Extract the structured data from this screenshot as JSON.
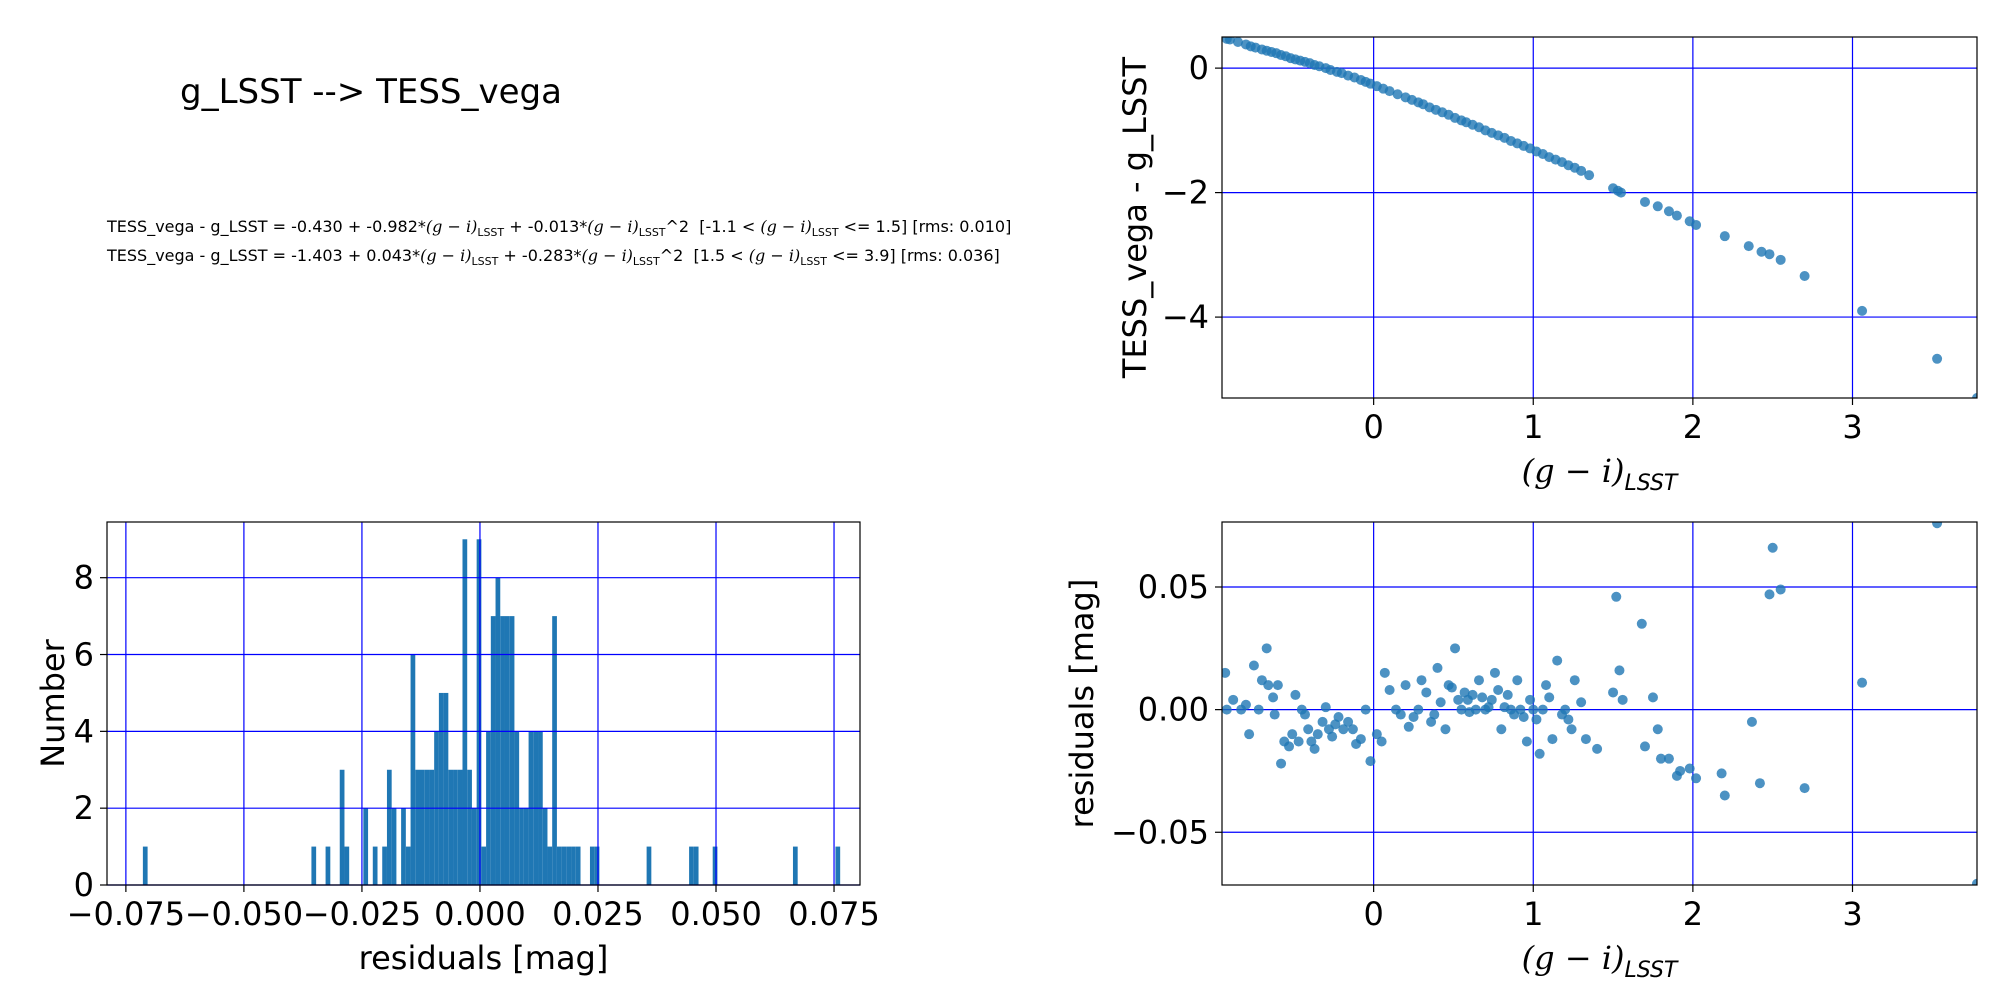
{
  "figure": {
    "title": "g_LSST --> TESS_vega",
    "equations": [
      {
        "lhs": "TESS_vega - g_LSST = -0.430 + -0.982*",
        "mid": " + -0.013*",
        "tail": "^2",
        "range_pre": "  [-1.1 < ",
        "range_post": " <= 1.5] [rms: 0.010]"
      },
      {
        "lhs": "TESS_vega - g_LSST = -1.403 + 0.043*",
        "mid": " + -0.283*",
        "tail": "^2",
        "range_pre": "  [1.5 < ",
        "range_post": " <= 3.9] [rms: 0.036]"
      }
    ],
    "color_term": "(g − i)",
    "color_sub": "LSST"
  },
  "colors": {
    "points": "#1f77b4",
    "grid": "#0000ff",
    "axes": "#000000"
  },
  "chart_data": [
    {
      "type": "scatter",
      "name": "transformation",
      "xlabel": "(g − i)",
      "xlabel_sub": "LSST",
      "ylabel": "TESS_vega - g_LSST",
      "xlim": [
        -0.95,
        3.78
      ],
      "ylim": [
        -5.3,
        0.5
      ],
      "xticks": [
        0,
        1,
        2,
        3
      ],
      "yticks": [
        0,
        -2,
        -4
      ],
      "xticklabels": [
        "0",
        "1",
        "2",
        "3"
      ],
      "yticklabels": [
        "0",
        "−2",
        "−4"
      ],
      "grid": true,
      "points": [
        [
          -0.92,
          0.47
        ],
        [
          -0.9,
          0.46
        ],
        [
          -0.85,
          0.42
        ],
        [
          -0.8,
          0.38
        ],
        [
          -0.77,
          0.35
        ],
        [
          -0.74,
          0.33
        ],
        [
          -0.7,
          0.3
        ],
        [
          -0.67,
          0.28
        ],
        [
          -0.64,
          0.26
        ],
        [
          -0.61,
          0.24
        ],
        [
          -0.58,
          0.21
        ],
        [
          -0.55,
          0.19
        ],
        [
          -0.52,
          0.16
        ],
        [
          -0.49,
          0.14
        ],
        [
          -0.46,
          0.12
        ],
        [
          -0.43,
          0.1
        ],
        [
          -0.4,
          0.08
        ],
        [
          -0.37,
          0.05
        ],
        [
          -0.34,
          0.03
        ],
        [
          -0.3,
          0.0
        ],
        [
          -0.27,
          -0.03
        ],
        [
          -0.23,
          -0.06
        ],
        [
          -0.2,
          -0.08
        ],
        [
          -0.16,
          -0.12
        ],
        [
          -0.12,
          -0.15
        ],
        [
          -0.08,
          -0.19
        ],
        [
          -0.05,
          -0.22
        ],
        [
          -0.02,
          -0.25
        ],
        [
          0.02,
          -0.29
        ],
        [
          0.06,
          -0.33
        ],
        [
          0.1,
          -0.37
        ],
        [
          0.15,
          -0.42
        ],
        [
          0.2,
          -0.47
        ],
        [
          0.24,
          -0.51
        ],
        [
          0.28,
          -0.55
        ],
        [
          0.31,
          -0.58
        ],
        [
          0.35,
          -0.63
        ],
        [
          0.39,
          -0.67
        ],
        [
          0.43,
          -0.71
        ],
        [
          0.47,
          -0.75
        ],
        [
          0.51,
          -0.8
        ],
        [
          0.55,
          -0.84
        ],
        [
          0.58,
          -0.87
        ],
        [
          0.62,
          -0.91
        ],
        [
          0.66,
          -0.95
        ],
        [
          0.7,
          -1.0
        ],
        [
          0.74,
          -1.04
        ],
        [
          0.78,
          -1.08
        ],
        [
          0.82,
          -1.12
        ],
        [
          0.86,
          -1.17
        ],
        [
          0.9,
          -1.21
        ],
        [
          0.94,
          -1.25
        ],
        [
          0.98,
          -1.29
        ],
        [
          1.02,
          -1.34
        ],
        [
          1.06,
          -1.38
        ],
        [
          1.1,
          -1.43
        ],
        [
          1.14,
          -1.47
        ],
        [
          1.18,
          -1.51
        ],
        [
          1.22,
          -1.56
        ],
        [
          1.26,
          -1.6
        ],
        [
          1.3,
          -1.65
        ],
        [
          1.35,
          -1.72
        ],
        [
          1.5,
          -1.93
        ],
        [
          1.53,
          -1.97
        ],
        [
          1.55,
          -2.0
        ],
        [
          1.7,
          -2.15
        ],
        [
          1.78,
          -2.22
        ],
        [
          1.85,
          -2.3
        ],
        [
          1.9,
          -2.37
        ],
        [
          1.98,
          -2.46
        ],
        [
          2.02,
          -2.52
        ],
        [
          2.2,
          -2.7
        ],
        [
          2.35,
          -2.86
        ],
        [
          2.43,
          -2.95
        ],
        [
          2.48,
          -2.99
        ],
        [
          2.55,
          -3.08
        ],
        [
          2.7,
          -3.34
        ],
        [
          3.06,
          -3.9
        ],
        [
          3.53,
          -4.67
        ],
        [
          3.78,
          -5.3
        ]
      ]
    },
    {
      "type": "bar",
      "name": "histogram",
      "xlabel": "residuals [mag]",
      "ylabel": "Number",
      "xlim": [
        -0.079,
        0.0805
      ],
      "ylim": [
        0,
        9.45
      ],
      "xticks": [
        -0.075,
        -0.05,
        -0.025,
        0.0,
        0.025,
        0.05,
        0.075
      ],
      "xticklabels": [
        "−0.075",
        "−0.050",
        "−0.025",
        "0.000",
        "0.025",
        "0.050",
        "0.075"
      ],
      "yticks": [
        0,
        2,
        4,
        6,
        8
      ],
      "yticklabels": [
        "0",
        "2",
        "4",
        "6",
        "8"
      ],
      "grid": true,
      "bin_width": 0.001,
      "bins": [
        [
          -0.0714,
          1
        ],
        [
          -0.0357,
          1
        ],
        [
          -0.0327,
          1
        ],
        [
          -0.0297,
          3
        ],
        [
          -0.0287,
          1
        ],
        [
          -0.0247,
          2
        ],
        [
          -0.0227,
          1
        ],
        [
          -0.0207,
          1
        ],
        [
          -0.0197,
          3
        ],
        [
          -0.0187,
          2
        ],
        [
          -0.0167,
          2
        ],
        [
          -0.0157,
          1
        ],
        [
          -0.0147,
          6
        ],
        [
          -0.0137,
          3
        ],
        [
          -0.0127,
          3
        ],
        [
          -0.0117,
          3
        ],
        [
          -0.0107,
          3
        ],
        [
          -0.0097,
          4
        ],
        [
          -0.0087,
          5
        ],
        [
          -0.0077,
          5
        ],
        [
          -0.0067,
          3
        ],
        [
          -0.0057,
          3
        ],
        [
          -0.0047,
          3
        ],
        [
          -0.0037,
          9
        ],
        [
          -0.0027,
          3
        ],
        [
          -0.0017,
          2
        ],
        [
          -0.0007,
          9
        ],
        [
          0.0003,
          1
        ],
        [
          0.0013,
          4
        ],
        [
          0.0023,
          7
        ],
        [
          0.0033,
          8
        ],
        [
          0.0043,
          7
        ],
        [
          0.0053,
          7
        ],
        [
          0.0063,
          7
        ],
        [
          0.0073,
          4
        ],
        [
          0.0083,
          2
        ],
        [
          0.0093,
          2
        ],
        [
          0.0103,
          4
        ],
        [
          0.0113,
          4
        ],
        [
          0.0123,
          4
        ],
        [
          0.0133,
          2
        ],
        [
          0.0143,
          1
        ],
        [
          0.0153,
          7
        ],
        [
          0.0163,
          1
        ],
        [
          0.0173,
          1
        ],
        [
          0.0183,
          1
        ],
        [
          0.0193,
          1
        ],
        [
          0.0203,
          1
        ],
        [
          0.0233,
          1
        ],
        [
          0.0243,
          1
        ],
        [
          0.0353,
          1
        ],
        [
          0.0443,
          1
        ],
        [
          0.0453,
          1
        ],
        [
          0.0493,
          1
        ],
        [
          0.0663,
          1
        ],
        [
          0.0753,
          1
        ]
      ]
    },
    {
      "type": "scatter",
      "name": "residuals",
      "xlabel": "(g − i)",
      "xlabel_sub": "LSST",
      "ylabel": "residuals [mag]",
      "xlim": [
        -0.95,
        3.78
      ],
      "ylim": [
        -0.0715,
        0.0765
      ],
      "xticks": [
        0,
        1,
        2,
        3
      ],
      "xticklabels": [
        "0",
        "1",
        "2",
        "3"
      ],
      "yticks": [
        0.05,
        0.0,
        -0.05
      ],
      "yticklabels": [
        "0.05",
        "0.00",
        "−0.05"
      ],
      "grid": true,
      "points": [
        [
          -0.93,
          0.015
        ],
        [
          -0.92,
          0.0
        ],
        [
          -0.88,
          0.004
        ],
        [
          -0.83,
          0.0
        ],
        [
          -0.8,
          0.002
        ],
        [
          -0.78,
          -0.01
        ],
        [
          -0.75,
          0.018
        ],
        [
          -0.72,
          0.0
        ],
        [
          -0.7,
          0.012
        ],
        [
          -0.67,
          0.025
        ],
        [
          -0.66,
          0.01
        ],
        [
          -0.63,
          0.005
        ],
        [
          -0.62,
          -0.002
        ],
        [
          -0.6,
          0.01
        ],
        [
          -0.58,
          -0.022
        ],
        [
          -0.56,
          -0.013
        ],
        [
          -0.53,
          -0.015
        ],
        [
          -0.51,
          -0.01
        ],
        [
          -0.49,
          0.006
        ],
        [
          -0.47,
          -0.013
        ],
        [
          -0.45,
          0.0
        ],
        [
          -0.43,
          -0.002
        ],
        [
          -0.41,
          -0.008
        ],
        [
          -0.39,
          -0.013
        ],
        [
          -0.37,
          -0.016
        ],
        [
          -0.35,
          -0.01
        ],
        [
          -0.32,
          -0.005
        ],
        [
          -0.3,
          0.001
        ],
        [
          -0.28,
          -0.008
        ],
        [
          -0.26,
          -0.011
        ],
        [
          -0.24,
          -0.006
        ],
        [
          -0.22,
          -0.003
        ],
        [
          -0.19,
          -0.008
        ],
        [
          -0.16,
          -0.005
        ],
        [
          -0.13,
          -0.008
        ],
        [
          -0.11,
          -0.014
        ],
        [
          -0.08,
          -0.012
        ],
        [
          -0.05,
          0.0
        ],
        [
          -0.02,
          -0.021
        ],
        [
          0.02,
          -0.01
        ],
        [
          0.05,
          -0.013
        ],
        [
          0.07,
          0.015
        ],
        [
          0.1,
          0.008
        ],
        [
          0.14,
          0.0
        ],
        [
          0.17,
          -0.002
        ],
        [
          0.2,
          0.01
        ],
        [
          0.22,
          -0.007
        ],
        [
          0.25,
          -0.003
        ],
        [
          0.28,
          0.0
        ],
        [
          0.3,
          0.012
        ],
        [
          0.33,
          0.007
        ],
        [
          0.36,
          -0.005
        ],
        [
          0.38,
          -0.002
        ],
        [
          0.4,
          0.017
        ],
        [
          0.42,
          0.003
        ],
        [
          0.45,
          -0.008
        ],
        [
          0.47,
          0.01
        ],
        [
          0.49,
          0.009
        ],
        [
          0.51,
          0.025
        ],
        [
          0.53,
          0.004
        ],
        [
          0.55,
          0.0
        ],
        [
          0.57,
          0.007
        ],
        [
          0.59,
          0.004
        ],
        [
          0.6,
          -0.001
        ],
        [
          0.62,
          0.006
        ],
        [
          0.64,
          0.0
        ],
        [
          0.66,
          0.012
        ],
        [
          0.68,
          0.005
        ],
        [
          0.7,
          0.0
        ],
        [
          0.72,
          0.001
        ],
        [
          0.74,
          0.004
        ],
        [
          0.76,
          0.015
        ],
        [
          0.78,
          0.008
        ],
        [
          0.8,
          -0.008
        ],
        [
          0.82,
          0.001
        ],
        [
          0.84,
          0.006
        ],
        [
          0.86,
          0.0
        ],
        [
          0.88,
          -0.002
        ],
        [
          0.9,
          0.012
        ],
        [
          0.92,
          0.0
        ],
        [
          0.94,
          -0.003
        ],
        [
          0.96,
          -0.013
        ],
        [
          0.98,
          0.004
        ],
        [
          1.0,
          0.0
        ],
        [
          1.02,
          -0.004
        ],
        [
          1.04,
          -0.018
        ],
        [
          1.06,
          0.0
        ],
        [
          1.08,
          0.01
        ],
        [
          1.1,
          0.005
        ],
        [
          1.12,
          -0.012
        ],
        [
          1.15,
          0.02
        ],
        [
          1.18,
          -0.002
        ],
        [
          1.2,
          0.0
        ],
        [
          1.22,
          -0.004
        ],
        [
          1.24,
          -0.008
        ],
        [
          1.26,
          0.012
        ],
        [
          1.3,
          0.003
        ],
        [
          1.33,
          -0.012
        ],
        [
          1.4,
          -0.016
        ],
        [
          1.5,
          0.007
        ],
        [
          1.52,
          0.046
        ],
        [
          1.54,
          0.016
        ],
        [
          1.56,
          0.004
        ],
        [
          1.68,
          0.035
        ],
        [
          1.7,
          -0.015
        ],
        [
          1.75,
          0.005
        ],
        [
          1.78,
          -0.008
        ],
        [
          1.8,
          -0.02
        ],
        [
          1.85,
          -0.02
        ],
        [
          1.9,
          -0.027
        ],
        [
          1.92,
          -0.025
        ],
        [
          1.98,
          -0.024
        ],
        [
          2.02,
          -0.028
        ],
        [
          2.18,
          -0.026
        ],
        [
          2.2,
          -0.035
        ],
        [
          2.37,
          -0.005
        ],
        [
          2.42,
          -0.03
        ],
        [
          2.48,
          0.047
        ],
        [
          2.5,
          0.066
        ],
        [
          2.55,
          0.049
        ],
        [
          2.7,
          -0.032
        ],
        [
          3.06,
          0.011
        ],
        [
          3.53,
          0.076
        ],
        [
          3.78,
          -0.071
        ]
      ]
    }
  ]
}
